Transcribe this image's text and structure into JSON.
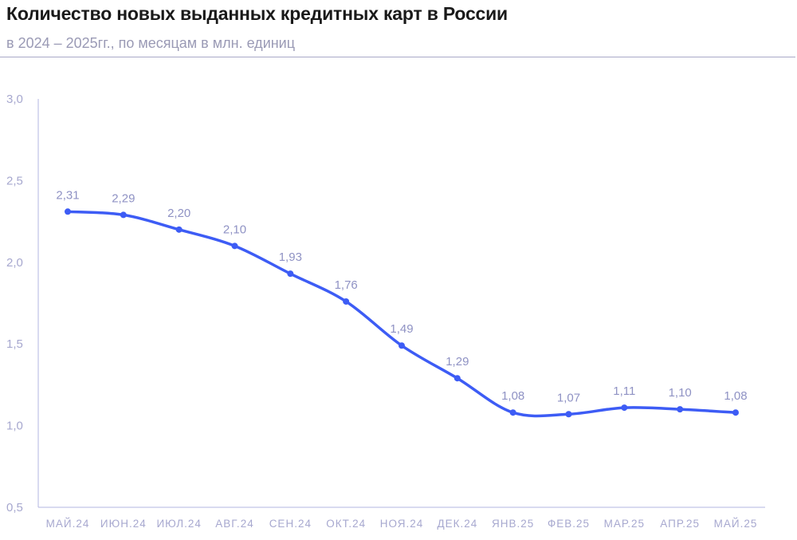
{
  "header": {
    "title": "Количество новых выданных кредитных карт в России",
    "subtitle": "в 2024 – 2025гг., по месяцам в млн. единиц"
  },
  "colors": {
    "line": "#3d5cf5",
    "axis": "#b3b5e0",
    "tick_text": "#a7a8cf",
    "data_label": "#8f92c4"
  },
  "chart_data": {
    "type": "line",
    "title": "Количество новых выданных кредитных карт в России",
    "subtitle": "в 2024 – 2025гг., по месяцам в млн. единиц",
    "xlabel": "",
    "ylabel": "",
    "categories": [
      "МАЙ.24",
      "ИЮН.24",
      "ИЮЛ.24",
      "АВГ.24",
      "СЕН.24",
      "ОКТ.24",
      "НОЯ.24",
      "ДЕК.24",
      "ЯНВ.25",
      "ФЕВ.25",
      "МАР.25",
      "АПР.25",
      "МАЙ.25"
    ],
    "series": [
      {
        "values": [
          2.31,
          2.29,
          2.2,
          2.1,
          1.93,
          1.76,
          1.49,
          1.29,
          1.08,
          1.07,
          1.11,
          1.1,
          1.08
        ]
      }
    ],
    "data_labels": [
      "2,31",
      "2,29",
      "2,20",
      "2,10",
      "1,93",
      "1,76",
      "1,49",
      "1,29",
      "1,08",
      "1,07",
      "1,11",
      "1,10",
      "1,08"
    ],
    "ylim": [
      0.5,
      3.0
    ],
    "yticks": [
      0.5,
      1.0,
      1.5,
      2.0,
      2.5,
      3.0
    ],
    "ytick_labels": [
      "0,5",
      "1,0",
      "1,5",
      "2,0",
      "2,5",
      "3,0"
    ],
    "grid": false,
    "legend": "none",
    "smooth": true,
    "markers": true
  }
}
